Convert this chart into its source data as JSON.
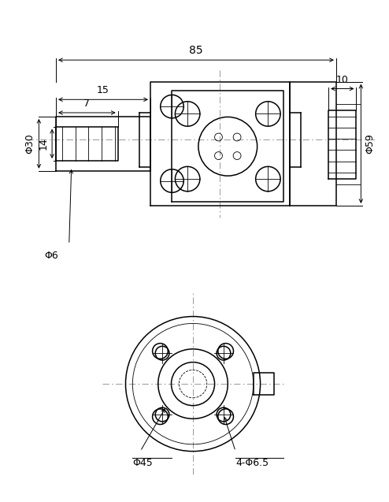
{
  "bg_color": "#ffffff",
  "line_color": "#000000",
  "dash_color": "#888888",
  "dim_85": "85",
  "dim_15": "15",
  "dim_7": "7",
  "dim_10": "10",
  "dim_30": "Φ30",
  "dim_14": "14",
  "dim_6": "Φ6",
  "dim_59": "Φ59",
  "dim_45": "Φ45",
  "dim_65": "4-Φ6.5"
}
